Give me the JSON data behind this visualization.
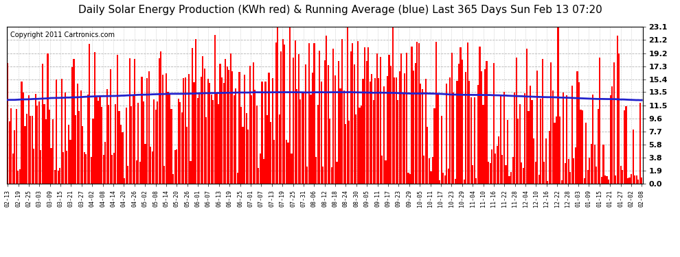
{
  "title": "Daily Solar Energy Production (KWh red) & Running Average (blue) Last 365 Days Sun Feb 13 07:20",
  "copyright_text": "Copyright 2011 Cartronics.com",
  "yticks": [
    0.0,
    1.9,
    3.8,
    5.8,
    7.7,
    9.6,
    11.5,
    13.5,
    15.4,
    17.3,
    19.2,
    21.2,
    23.1
  ],
  "ymax": 23.1,
  "ymin": 0.0,
  "bar_color": "#ff0000",
  "avg_color": "#2222cc",
  "bg_color": "#ffffff",
  "grid_color": "#aaaaaa",
  "title_fontsize": 11,
  "copyright_fontsize": 7,
  "avg_linewidth": 2.0,
  "xtick_labels": [
    "02-13",
    "02-19",
    "02-25",
    "03-03",
    "03-09",
    "03-15",
    "03-21",
    "03-27",
    "04-02",
    "04-08",
    "04-14",
    "04-20",
    "04-26",
    "05-02",
    "05-08",
    "05-14",
    "05-20",
    "05-26",
    "06-01",
    "06-07",
    "06-13",
    "06-19",
    "06-25",
    "07-01",
    "07-07",
    "07-13",
    "07-19",
    "07-25",
    "07-31",
    "08-06",
    "08-12",
    "08-18",
    "08-24",
    "08-30",
    "09-05",
    "09-11",
    "09-17",
    "09-23",
    "09-29",
    "10-05",
    "10-11",
    "10-17",
    "10-23",
    "10-29",
    "11-04",
    "11-10",
    "11-16",
    "11-22",
    "11-28",
    "12-04",
    "12-10",
    "12-16",
    "12-22",
    "12-28",
    "01-03",
    "01-09",
    "01-15",
    "01-21",
    "01-27",
    "02-02",
    "02-08"
  ]
}
